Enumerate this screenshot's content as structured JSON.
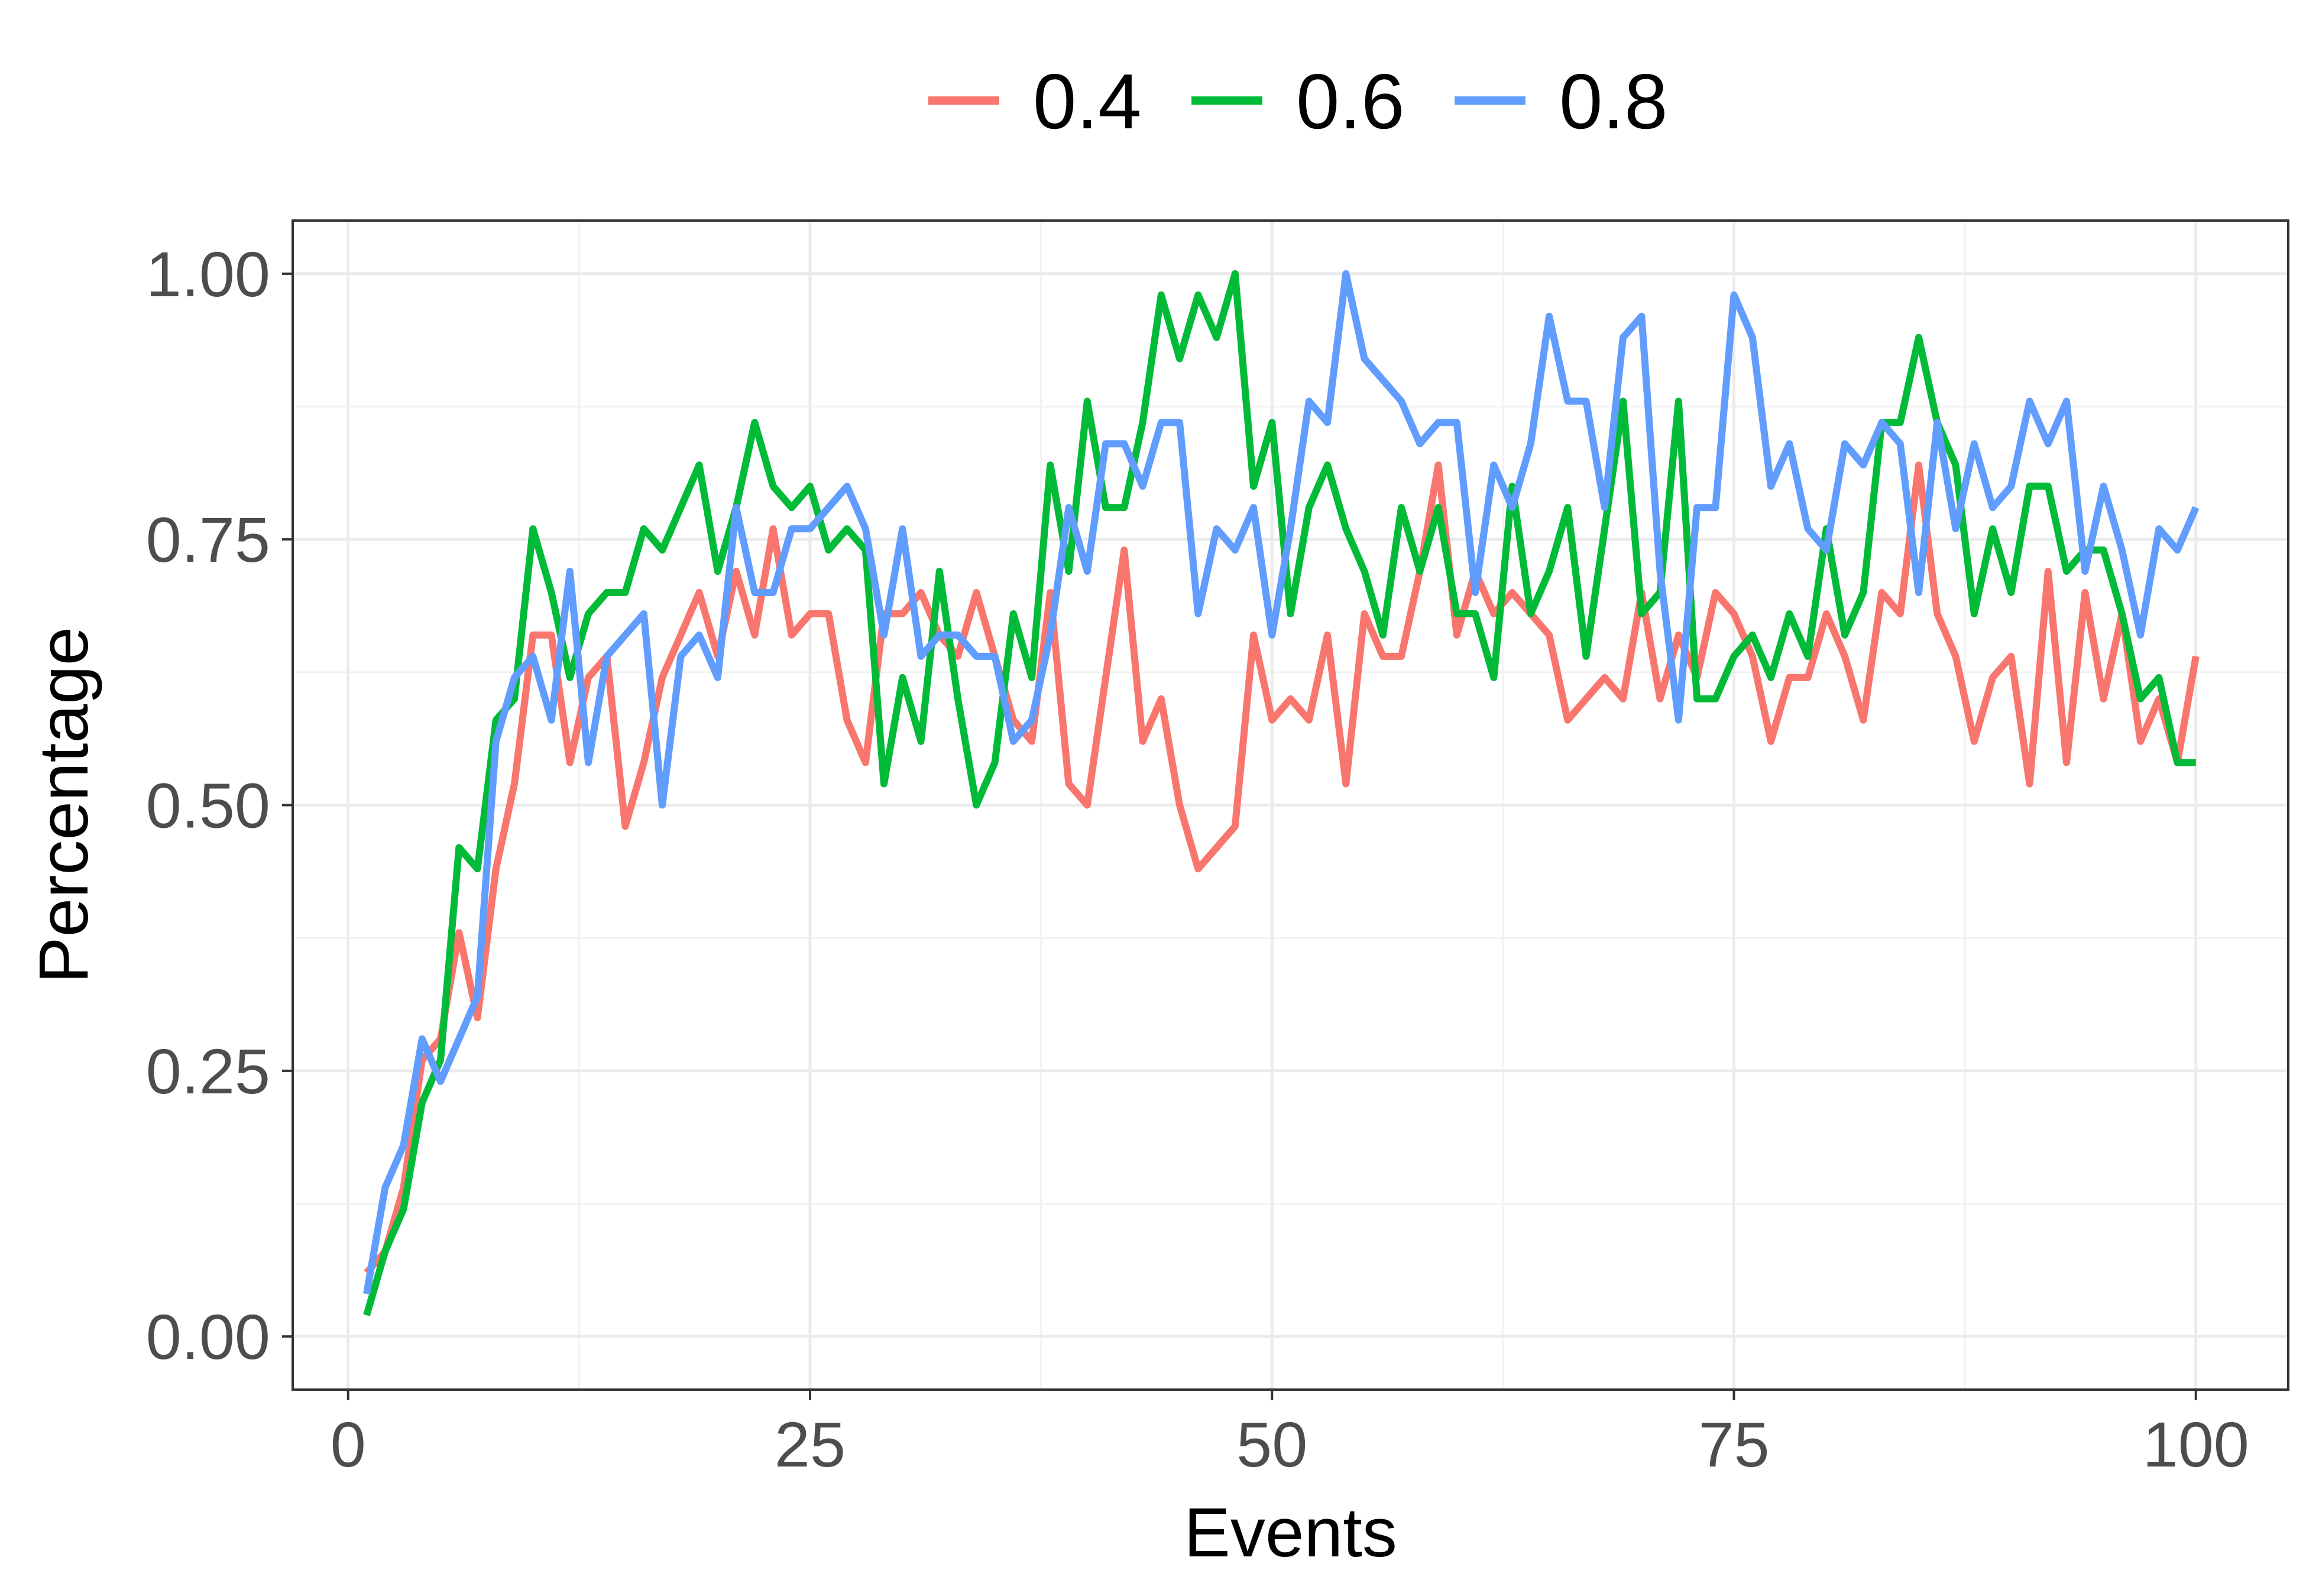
{
  "chart_data": {
    "type": "line",
    "xlabel": "Events",
    "ylabel": "Percentage",
    "xlim": [
      -3,
      105
    ],
    "ylim": [
      -0.05,
      1.05
    ],
    "x_ticks": [
      {
        "value": 0,
        "label": "0"
      },
      {
        "value": 25,
        "label": "25"
      },
      {
        "value": 50,
        "label": "50"
      },
      {
        "value": 75,
        "label": "75"
      },
      {
        "value": 100,
        "label": "100"
      }
    ],
    "y_ticks": [
      {
        "value": 0,
        "label": "0.00"
      },
      {
        "value": 0.25,
        "label": "0.25"
      },
      {
        "value": 0.5,
        "label": "0.50"
      },
      {
        "value": 0.75,
        "label": "0.75"
      },
      {
        "value": 1,
        "label": "1.00"
      }
    ],
    "grid": true,
    "legend_position": "top",
    "x": [
      1,
      2,
      3,
      4,
      5,
      6,
      7,
      8,
      9,
      10,
      11,
      12,
      13,
      14,
      15,
      16,
      17,
      18,
      19,
      20,
      21,
      22,
      23,
      24,
      25,
      26,
      27,
      28,
      29,
      30,
      31,
      32,
      33,
      34,
      35,
      36,
      37,
      38,
      39,
      40,
      41,
      42,
      43,
      44,
      45,
      46,
      47,
      48,
      49,
      50,
      51,
      52,
      53,
      54,
      55,
      56,
      57,
      58,
      59,
      60,
      61,
      62,
      63,
      64,
      65,
      66,
      67,
      68,
      69,
      70,
      71,
      72,
      73,
      74,
      75,
      76,
      77,
      78,
      79,
      80,
      81,
      82,
      83,
      84,
      85,
      86,
      87,
      88,
      89,
      90,
      91,
      92,
      93,
      94,
      95,
      96,
      97,
      98,
      99,
      100
    ],
    "series": [
      {
        "name": "0.4",
        "color": "#F8766D",
        "values": [
          0.06,
          0.08,
          0.14,
          0.26,
          0.28,
          0.38,
          0.3,
          0.44,
          0.52,
          0.66,
          0.66,
          0.54,
          0.62,
          0.64,
          0.48,
          0.54,
          0.62,
          0.66,
          0.7,
          0.64,
          0.72,
          0.66,
          0.76,
          0.66,
          0.68,
          0.68,
          0.58,
          0.54,
          0.68,
          0.68,
          0.7,
          0.66,
          0.64,
          0.7,
          0.64,
          0.58,
          0.56,
          0.7,
          0.52,
          0.5,
          0.62,
          0.74,
          0.56,
          0.6,
          0.5,
          0.44,
          0.46,
          0.48,
          0.66,
          0.58,
          0.6,
          0.58,
          0.66,
          0.52,
          0.68,
          0.64,
          0.64,
          0.72,
          0.82,
          0.66,
          0.72,
          0.68,
          0.7,
          0.68,
          0.66,
          0.58,
          0.6,
          0.62,
          0.6,
          0.7,
          0.6,
          0.66,
          0.62,
          0.7,
          0.68,
          0.64,
          0.56,
          0.62,
          0.62,
          0.68,
          0.64,
          0.58,
          0.7,
          0.68,
          0.82,
          0.68,
          0.64,
          0.56,
          0.62,
          0.64,
          0.52,
          0.72,
          0.54,
          0.7,
          0.6,
          0.68,
          0.56,
          0.6,
          0.54,
          0.64
        ]
      },
      {
        "name": "0.6",
        "color": "#00BA38",
        "values": [
          0.02,
          0.08,
          0.12,
          0.22,
          0.26,
          0.46,
          0.44,
          0.58,
          0.6,
          0.76,
          0.7,
          0.62,
          0.68,
          0.7,
          0.7,
          0.76,
          0.74,
          0.78,
          0.82,
          0.72,
          0.78,
          0.86,
          0.8,
          0.78,
          0.8,
          0.74,
          0.76,
          0.74,
          0.52,
          0.62,
          0.56,
          0.72,
          0.6,
          0.5,
          0.54,
          0.68,
          0.62,
          0.82,
          0.72,
          0.88,
          0.78,
          0.78,
          0.86,
          0.98,
          0.92,
          0.98,
          0.94,
          1.0,
          0.8,
          0.86,
          0.68,
          0.78,
          0.82,
          0.76,
          0.72,
          0.66,
          0.78,
          0.72,
          0.78,
          0.68,
          0.68,
          0.62,
          0.8,
          0.68,
          0.72,
          0.78,
          0.64,
          0.76,
          0.88,
          0.68,
          0.7,
          0.88,
          0.6,
          0.6,
          0.64,
          0.66,
          0.62,
          0.68,
          0.64,
          0.76,
          0.66,
          0.7,
          0.86,
          0.86,
          0.94,
          0.86,
          0.82,
          0.68,
          0.76,
          0.7,
          0.8,
          0.8,
          0.72,
          0.74,
          0.74,
          0.68,
          0.6,
          0.62,
          0.54,
          0.54
        ]
      },
      {
        "name": "0.8",
        "color": "#619CFF",
        "values": [
          0.04,
          0.14,
          0.18,
          0.28,
          0.24,
          0.28,
          0.32,
          0.56,
          0.62,
          0.64,
          0.58,
          0.72,
          0.54,
          0.64,
          0.66,
          0.68,
          0.5,
          0.64,
          0.66,
          0.62,
          0.78,
          0.7,
          0.7,
          0.76,
          0.76,
          0.78,
          0.8,
          0.76,
          0.66,
          0.76,
          0.64,
          0.66,
          0.66,
          0.64,
          0.64,
          0.56,
          0.58,
          0.66,
          0.78,
          0.72,
          0.84,
          0.84,
          0.8,
          0.86,
          0.86,
          0.68,
          0.76,
          0.74,
          0.78,
          0.66,
          0.76,
          0.88,
          0.86,
          1.0,
          0.92,
          0.9,
          0.88,
          0.84,
          0.86,
          0.86,
          0.7,
          0.82,
          0.78,
          0.84,
          0.96,
          0.88,
          0.88,
          0.78,
          0.94,
          0.96,
          0.72,
          0.58,
          0.78,
          0.78,
          0.98,
          0.94,
          0.8,
          0.84,
          0.76,
          0.74,
          0.84,
          0.82,
          0.86,
          0.84,
          0.7,
          0.86,
          0.76,
          0.84,
          0.78,
          0.8,
          0.88,
          0.84,
          0.88,
          0.72,
          0.8,
          0.74,
          0.66,
          0.76,
          0.74,
          0.78
        ]
      }
    ]
  }
}
